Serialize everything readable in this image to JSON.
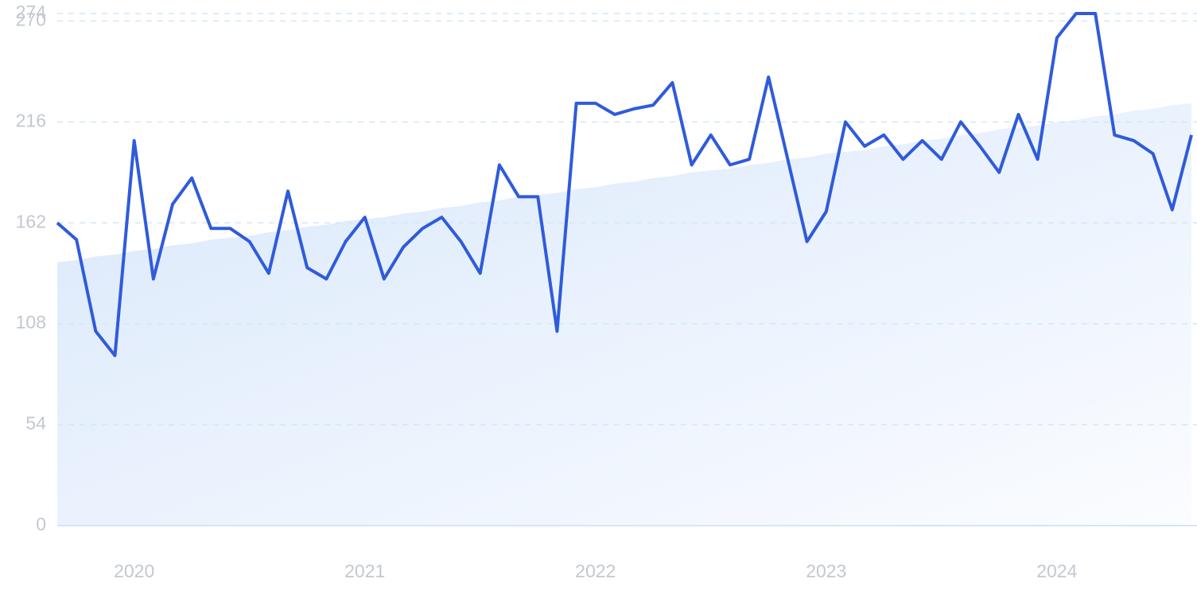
{
  "chart_data": {
    "type": "line",
    "categories": [
      null,
      null,
      null,
      null,
      "2020",
      null,
      null,
      null,
      null,
      null,
      null,
      null,
      null,
      null,
      null,
      null,
      "2021",
      null,
      null,
      null,
      null,
      null,
      null,
      null,
      null,
      null,
      null,
      null,
      "2022",
      null,
      null,
      null,
      null,
      null,
      null,
      null,
      null,
      null,
      null,
      null,
      "2023",
      null,
      null,
      null,
      null,
      null,
      null,
      null,
      null,
      null,
      null,
      null,
      "2024",
      null,
      null,
      null,
      null,
      null,
      null,
      null
    ],
    "series": [
      {
        "color": "#2f5bdb",
        "values": [
          162,
          153,
          104,
          91,
          206,
          132,
          172,
          186,
          159,
          159,
          152,
          135,
          179,
          138,
          132,
          152,
          165,
          132,
          149,
          159,
          165,
          152,
          135,
          193,
          176,
          176,
          104,
          226,
          226,
          220,
          223,
          225,
          237,
          193,
          209,
          193,
          196,
          240,
          196,
          152,
          168,
          216,
          203,
          209,
          196,
          206,
          196,
          216,
          203,
          189,
          220,
          196,
          261,
          274,
          274,
          209,
          206,
          199,
          169,
          209
        ]
      },
      {
        "color": "#dbe9fb",
        "fill": "area",
        "values": [
          141,
          142,
          144,
          145,
          147,
          148,
          150,
          151,
          153,
          154,
          155,
          157,
          158,
          160,
          161,
          163,
          164,
          165,
          167,
          168,
          170,
          171,
          173,
          174,
          176,
          177,
          178,
          180,
          181,
          183,
          184,
          186,
          187,
          189,
          190,
          191,
          193,
          194,
          196,
          197,
          199,
          200,
          201,
          203,
          204,
          206,
          207,
          209,
          210,
          212,
          213,
          214,
          216,
          217,
          219,
          220,
          222,
          223,
          225,
          226
        ]
      }
    ],
    "ylim": [
      0,
      274
    ],
    "yticks": [
      0,
      54,
      108,
      162,
      216,
      270,
      274
    ],
    "grid": true
  }
}
